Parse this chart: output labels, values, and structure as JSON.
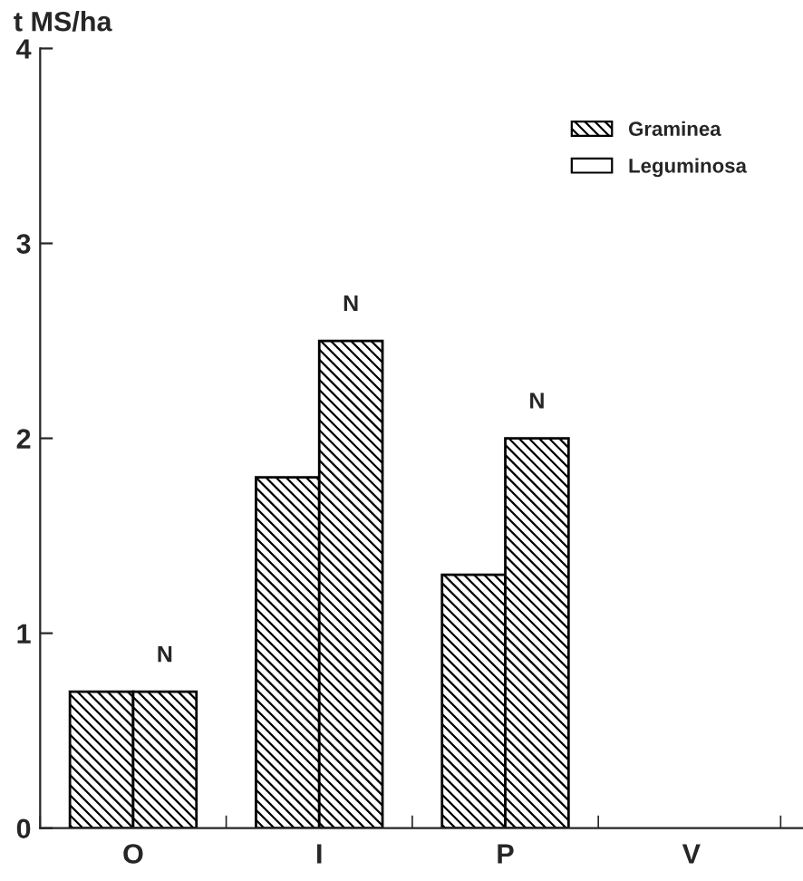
{
  "chart_data": {
    "type": "bar",
    "ylabel": "t MS/ha",
    "categories": [
      "O",
      "I",
      "P",
      "V"
    ],
    "series": [
      {
        "name": "Graminea",
        "color": "#000000",
        "values": [
          0.7,
          1.8,
          1.3,
          null
        ]
      },
      {
        "color": "#000000",
        "values": [
          0.7,
          2.5,
          2.0,
          null
        ]
      },
      {
        "name": "Leguminosa",
        "color": "#ffffff",
        "values": [
          null,
          null,
          null,
          null
        ]
      }
    ],
    "ylim": [
      0,
      4
    ],
    "yticks": [
      0,
      1,
      2,
      3,
      4
    ],
    "annotations": [
      {
        "text": "N",
        "x": "O",
        "y": 0.7
      },
      {
        "text": "N",
        "x": "I",
        "y": 2.5
      },
      {
        "text": "N",
        "x": "P",
        "y": 2.0
      }
    ],
    "legend": "top right",
    "grid": false
  }
}
